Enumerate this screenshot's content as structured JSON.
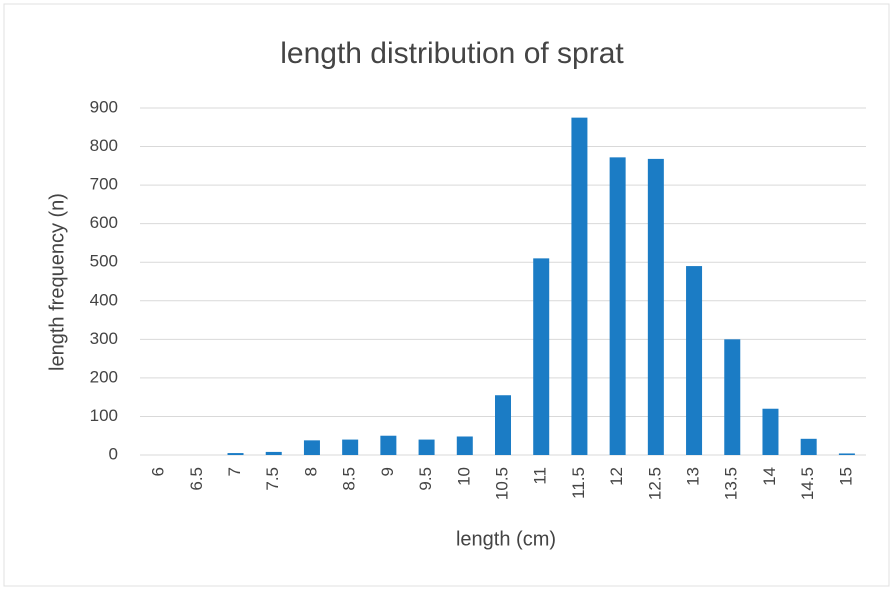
{
  "chart_data": {
    "type": "bar",
    "title": "length distribution of sprat",
    "x_label": "length (cm)",
    "y_label": "length frequency (n)",
    "categories": [
      "6",
      "6.5",
      "7",
      "7.5",
      "8",
      "8.5",
      "9",
      "9.5",
      "10",
      "10.5",
      "11",
      "11.5",
      "12",
      "12.5",
      "13",
      "13.5",
      "14",
      "14.5",
      "15"
    ],
    "values": [
      0,
      0,
      5,
      8,
      38,
      40,
      50,
      40,
      48,
      155,
      510,
      875,
      772,
      768,
      490,
      300,
      120,
      42,
      4
    ],
    "color": "#1b7cc5",
    "ylim": [
      0,
      900
    ],
    "yticks": [
      0,
      100,
      200,
      300,
      400,
      500,
      600,
      700,
      800,
      900
    ],
    "grid": true
  }
}
